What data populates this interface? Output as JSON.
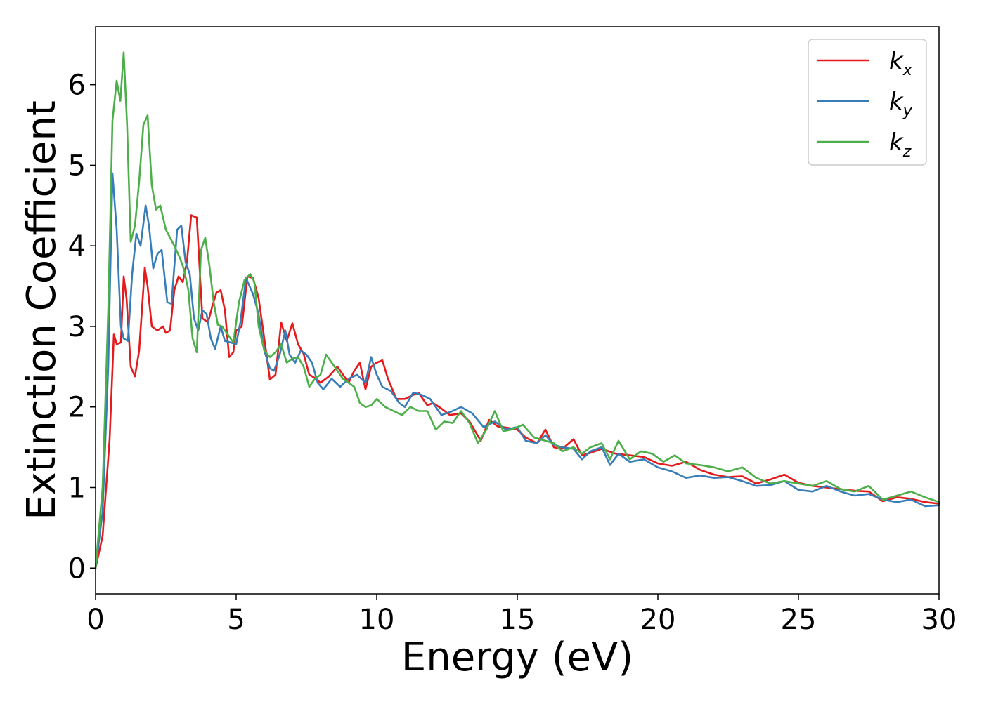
{
  "chart_data": {
    "type": "line",
    "xlabel": "Energy (eV)",
    "ylabel": "Extinction Coefficient",
    "xlim": [
      0,
      30
    ],
    "ylim": [
      -0.32,
      6.72
    ],
    "xticks": [
      0,
      5,
      10,
      15,
      20,
      25,
      30
    ],
    "yticks": [
      0,
      1,
      2,
      3,
      4,
      5,
      6
    ],
    "grid": false,
    "legend_position": "top-right",
    "series": [
      {
        "name": "kx",
        "base": "k",
        "sub": "x",
        "color": "#e41a1c",
        "x": [
          0,
          0.25,
          0.5,
          0.65,
          0.75,
          0.9,
          1.0,
          1.1,
          1.25,
          1.4,
          1.55,
          1.75,
          1.85,
          2.0,
          2.2,
          2.4,
          2.5,
          2.65,
          2.8,
          2.95,
          3.1,
          3.25,
          3.4,
          3.6,
          3.8,
          4.0,
          4.15,
          4.3,
          4.45,
          4.6,
          4.75,
          4.9,
          5.0,
          5.2,
          5.4,
          5.6,
          5.8,
          6.0,
          6.2,
          6.4,
          6.5,
          6.6,
          6.8,
          7.0,
          7.2,
          7.4,
          7.6,
          7.8,
          8.0,
          8.3,
          8.6,
          9.0,
          9.2,
          9.4,
          9.6,
          9.8,
          10.0,
          10.2,
          10.4,
          10.7,
          11.0,
          11.3,
          11.5,
          11.8,
          12.0,
          12.3,
          12.6,
          13.0,
          13.3,
          13.7,
          14.0,
          14.3,
          14.7,
          15.0,
          15.3,
          15.7,
          16.0,
          16.3,
          16.6,
          17.0,
          17.3,
          17.6,
          18.0,
          18.5,
          19.0,
          19.5,
          20.0,
          20.5,
          21.0,
          21.5,
          22.0,
          22.5,
          23.0,
          23.5,
          24.0,
          24.5,
          25.0,
          25.5,
          26.0,
          26.5,
          27.0,
          27.5,
          28.0,
          28.5,
          29.0,
          29.5,
          30.0
        ],
        "values": [
          0,
          0.4,
          1.6,
          2.9,
          2.78,
          2.8,
          3.62,
          3.35,
          2.5,
          2.38,
          2.7,
          3.73,
          3.5,
          3.0,
          2.95,
          3.0,
          2.92,
          2.95,
          3.45,
          3.62,
          3.55,
          3.8,
          4.38,
          4.35,
          3.1,
          3.05,
          3.25,
          3.42,
          3.45,
          3.2,
          2.62,
          2.68,
          2.95,
          3.0,
          3.62,
          3.6,
          3.35,
          2.85,
          2.34,
          2.4,
          2.72,
          3.05,
          2.82,
          3.04,
          2.78,
          2.66,
          2.4,
          2.36,
          2.3,
          2.38,
          2.5,
          2.3,
          2.45,
          2.55,
          2.22,
          2.5,
          2.55,
          2.58,
          2.35,
          2.1,
          2.1,
          2.15,
          2.17,
          2.02,
          2.05,
          1.98,
          1.9,
          1.92,
          1.82,
          1.58,
          1.84,
          1.76,
          1.74,
          1.72,
          1.62,
          1.55,
          1.72,
          1.5,
          1.48,
          1.6,
          1.4,
          1.43,
          1.48,
          1.42,
          1.4,
          1.38,
          1.3,
          1.27,
          1.32,
          1.22,
          1.16,
          1.13,
          1.14,
          1.05,
          1.1,
          1.16,
          1.06,
          1.02,
          1.0,
          0.98,
          0.96,
          0.95,
          0.83,
          0.88,
          0.86,
          0.82,
          0.8
        ]
      },
      {
        "name": "ky",
        "base": "k",
        "sub": "y",
        "color": "#377eb8",
        "x": [
          0,
          0.25,
          0.45,
          0.6,
          0.75,
          0.9,
          1.0,
          1.15,
          1.3,
          1.45,
          1.6,
          1.78,
          1.9,
          2.05,
          2.2,
          2.35,
          2.55,
          2.7,
          2.9,
          3.05,
          3.2,
          3.35,
          3.5,
          3.65,
          3.8,
          3.95,
          4.1,
          4.25,
          4.45,
          4.6,
          4.8,
          5.0,
          5.15,
          5.35,
          5.6,
          5.8,
          6.0,
          6.2,
          6.35,
          6.55,
          6.75,
          6.9,
          7.1,
          7.3,
          7.5,
          7.7,
          7.9,
          8.1,
          8.4,
          8.7,
          9.0,
          9.3,
          9.6,
          9.8,
          10.0,
          10.2,
          10.5,
          10.8,
          11.0,
          11.3,
          11.6,
          11.9,
          12.3,
          12.7,
          13.0,
          13.4,
          13.8,
          14.2,
          14.6,
          15.0,
          15.3,
          15.7,
          16.0,
          16.3,
          16.6,
          17.0,
          17.3,
          17.6,
          18.0,
          18.3,
          18.6,
          19.0,
          19.5,
          20.0,
          20.5,
          21.0,
          21.5,
          22.0,
          22.5,
          23.0,
          23.5,
          24.0,
          24.5,
          25.0,
          25.5,
          26.0,
          26.5,
          27.0,
          27.5,
          28.0,
          28.5,
          29.0,
          29.5,
          30.0
        ],
        "values": [
          0,
          0.7,
          2.5,
          4.9,
          4.2,
          3.0,
          2.85,
          2.82,
          3.65,
          4.15,
          4.0,
          4.5,
          4.25,
          3.72,
          3.9,
          3.95,
          3.3,
          3.28,
          4.2,
          4.25,
          3.8,
          3.65,
          3.1,
          2.95,
          3.2,
          3.15,
          2.85,
          2.72,
          3.0,
          2.82,
          2.8,
          2.78,
          3.05,
          3.6,
          3.4,
          3.15,
          2.7,
          2.48,
          2.45,
          2.65,
          2.95,
          2.65,
          2.55,
          2.7,
          2.65,
          2.55,
          2.3,
          2.22,
          2.35,
          2.25,
          2.35,
          2.4,
          2.3,
          2.62,
          2.4,
          2.25,
          2.2,
          2.05,
          2.0,
          2.18,
          2.15,
          2.1,
          1.9,
          1.95,
          2.0,
          1.92,
          1.75,
          1.82,
          1.72,
          1.75,
          1.58,
          1.55,
          1.65,
          1.53,
          1.5,
          1.48,
          1.35,
          1.45,
          1.5,
          1.28,
          1.42,
          1.32,
          1.35,
          1.25,
          1.2,
          1.12,
          1.15,
          1.12,
          1.13,
          1.08,
          1.02,
          1.03,
          1.08,
          0.97,
          0.95,
          1.02,
          0.95,
          0.9,
          0.92,
          0.85,
          0.82,
          0.85,
          0.77,
          0.78
        ]
      },
      {
        "name": "kz",
        "base": "k",
        "sub": "z",
        "color": "#4daf4a",
        "x": [
          0,
          0.25,
          0.45,
          0.6,
          0.75,
          0.88,
          1.0,
          1.12,
          1.25,
          1.4,
          1.55,
          1.7,
          1.85,
          2.0,
          2.15,
          2.3,
          2.5,
          2.65,
          2.8,
          3.0,
          3.15,
          3.3,
          3.45,
          3.6,
          3.75,
          3.9,
          4.05,
          4.2,
          4.35,
          4.5,
          4.7,
          4.9,
          5.1,
          5.3,
          5.5,
          5.65,
          5.8,
          6.0,
          6.2,
          6.4,
          6.6,
          6.8,
          7.0,
          7.2,
          7.4,
          7.6,
          7.8,
          8.0,
          8.2,
          8.4,
          8.6,
          8.8,
          9.0,
          9.2,
          9.4,
          9.6,
          9.8,
          10.0,
          10.3,
          10.6,
          10.9,
          11.2,
          11.5,
          11.8,
          12.1,
          12.4,
          12.7,
          13.0,
          13.3,
          13.6,
          13.9,
          14.2,
          14.5,
          14.8,
          15.2,
          15.6,
          16.0,
          16.3,
          16.6,
          17.0,
          17.3,
          17.6,
          18.0,
          18.3,
          18.6,
          19.0,
          19.4,
          19.8,
          20.2,
          20.6,
          21.0,
          21.5,
          22.0,
          22.5,
          23.0,
          23.5,
          24.0,
          24.5,
          25.0,
          25.5,
          26.0,
          26.5,
          27.0,
          27.5,
          28.0,
          28.5,
          29.0,
          29.5,
          30.0
        ],
        "values": [
          0,
          1.0,
          3.2,
          5.55,
          6.05,
          5.8,
          6.4,
          5.5,
          4.05,
          4.25,
          4.8,
          5.5,
          5.62,
          4.75,
          4.45,
          4.5,
          4.2,
          4.1,
          4.0,
          3.85,
          3.7,
          3.45,
          2.85,
          2.68,
          3.95,
          4.1,
          3.75,
          3.3,
          3.02,
          3.0,
          2.9,
          2.8,
          3.3,
          3.58,
          3.65,
          3.55,
          3.0,
          2.7,
          2.62,
          2.68,
          2.78,
          2.55,
          2.6,
          2.62,
          2.5,
          2.25,
          2.35,
          2.4,
          2.65,
          2.55,
          2.45,
          2.35,
          2.3,
          2.25,
          2.05,
          2.0,
          2.02,
          2.1,
          2.0,
          1.95,
          1.9,
          2.0,
          1.95,
          1.95,
          1.72,
          1.82,
          1.8,
          1.95,
          1.8,
          1.55,
          1.72,
          1.95,
          1.7,
          1.72,
          1.78,
          1.62,
          1.58,
          1.55,
          1.45,
          1.5,
          1.42,
          1.5,
          1.55,
          1.35,
          1.58,
          1.35,
          1.45,
          1.42,
          1.32,
          1.4,
          1.3,
          1.28,
          1.25,
          1.2,
          1.25,
          1.12,
          1.05,
          1.08,
          1.05,
          1.02,
          1.08,
          0.98,
          0.95,
          1.02,
          0.85,
          0.9,
          0.95,
          0.88,
          0.82
        ]
      }
    ]
  }
}
